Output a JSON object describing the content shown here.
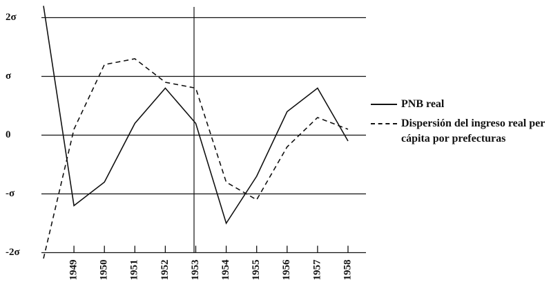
{
  "chart_data": {
    "type": "line",
    "categories": [
      null,
      "1949",
      "1950",
      "1951",
      "1952",
      "1953",
      "1954",
      "1955",
      "1956",
      "1957",
      "1958"
    ],
    "series": [
      {
        "name": "PNB real",
        "color": "#111111",
        "dash": "solid",
        "values": [
          2.2,
          -1.2,
          -0.8,
          0.2,
          0.8,
          0.2,
          -1.5,
          -0.7,
          0.4,
          0.8,
          -0.1
        ]
      },
      {
        "name": "Dispersión del ingreso real per cápita por prefecturas",
        "color": "#111111",
        "dash": "dashed",
        "values": [
          -2.1,
          0.1,
          1.2,
          1.3,
          0.9,
          0.8,
          -0.8,
          -1.1,
          -0.2,
          0.3,
          0.1
        ]
      }
    ],
    "ylim": [
      -2.2,
      2.3
    ],
    "yticks": [
      {
        "value": -2,
        "label": "-2σ"
      },
      {
        "value": -1,
        "label": "-σ"
      },
      0,
      {
        "value": 1,
        "label": "σ"
      },
      {
        "value": 2,
        "label": "2σ"
      }
    ],
    "grid": true,
    "legend": "right"
  }
}
